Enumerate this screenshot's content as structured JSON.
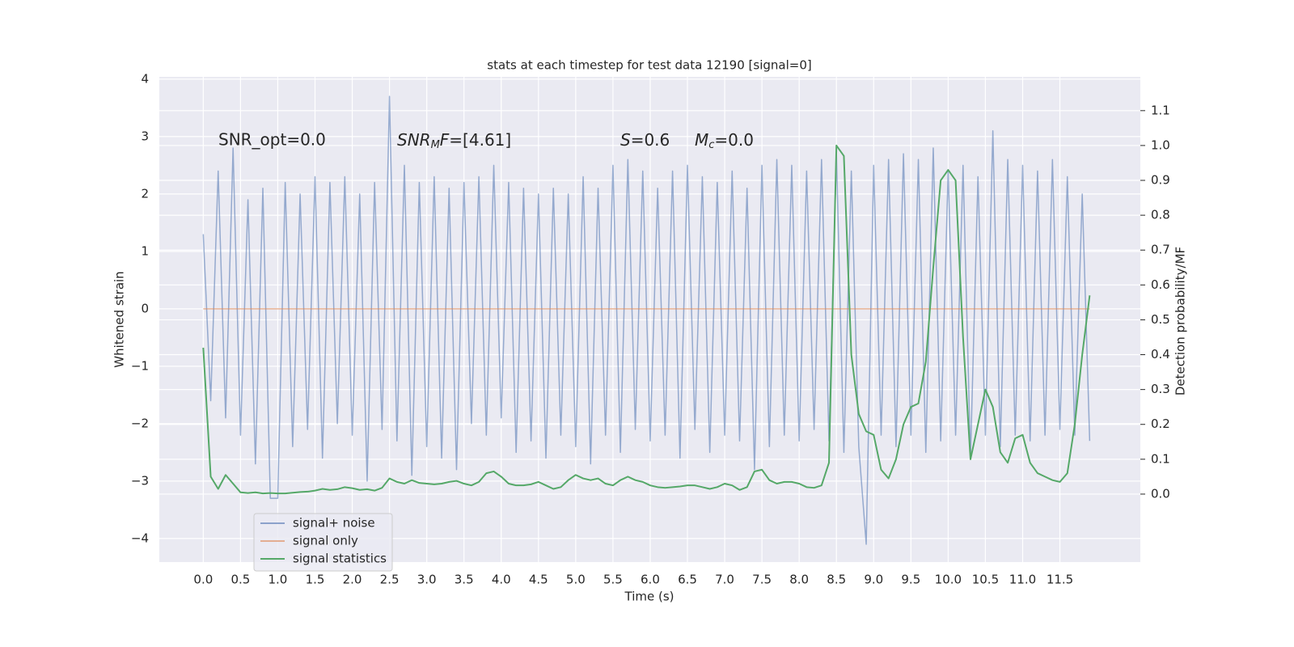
{
  "chart_data": {
    "type": "line",
    "title": "stats at each timestep for test data 12190 [signal=0]",
    "xlabel": "Time (s)",
    "ylabel": "Whitened strain",
    "y2label": "Detection probability/MF",
    "annotations": {
      "snr_opt": "SNR_opt=0.0",
      "snr_mf": [
        "SNR",
        "M",
        "F",
        "=[4.61]"
      ],
      "s": [
        "S",
        "=0.6"
      ],
      "mc": [
        "M",
        "c",
        "=0.0"
      ]
    },
    "x": [
      0,
      0.1,
      0.2,
      0.3,
      0.4,
      0.5,
      0.6,
      0.7,
      0.8,
      0.9,
      1.0,
      1.1,
      1.2,
      1.3,
      1.4,
      1.5,
      1.6,
      1.7,
      1.8,
      1.9,
      2.0,
      2.1,
      2.2,
      2.3,
      2.4,
      2.5,
      2.6,
      2.7,
      2.8,
      2.9,
      3.0,
      3.1,
      3.2,
      3.3,
      3.4,
      3.5,
      3.6,
      3.7,
      3.8,
      3.9,
      4.0,
      4.1,
      4.2,
      4.3,
      4.4,
      4.5,
      4.6,
      4.7,
      4.8,
      4.9,
      5.0,
      5.1,
      5.2,
      5.3,
      5.4,
      5.5,
      5.6,
      5.7,
      5.8,
      5.9,
      6.0,
      6.1,
      6.2,
      6.3,
      6.4,
      6.5,
      6.6,
      6.7,
      6.8,
      6.9,
      7.0,
      7.1,
      7.2,
      7.3,
      7.4,
      7.5,
      7.6,
      7.7,
      7.8,
      7.9,
      8.0,
      8.1,
      8.2,
      8.3,
      8.4,
      8.5,
      8.6,
      8.7,
      8.8,
      8.9,
      9.0,
      9.1,
      9.2,
      9.3,
      9.4,
      9.5,
      9.6,
      9.7,
      9.8,
      9.9,
      10.0,
      10.1,
      10.2,
      10.3,
      10.4,
      10.5,
      10.6,
      10.7,
      10.8,
      10.9,
      11.0,
      11.1,
      11.2,
      11.3,
      11.4,
      11.5,
      11.6,
      11.7,
      11.8,
      11.9
    ],
    "series": [
      {
        "name": "signal+ noise",
        "color": "#4c72b0",
        "values": [
          1.3,
          -1.6,
          2.4,
          -1.9,
          2.8,
          -2.2,
          1.9,
          -2.7,
          2.1,
          -3.3,
          -3.3,
          2.2,
          -2.4,
          2.0,
          -2.1,
          2.3,
          -2.6,
          2.2,
          -2.0,
          2.3,
          -2.2,
          2.0,
          -3.0,
          2.2,
          -2.1,
          3.7,
          -2.3,
          2.5,
          -2.9,
          2.2,
          -2.4,
          2.3,
          -2.6,
          2.1,
          -2.8,
          2.2,
          -2.0,
          2.3,
          -2.2,
          2.5,
          -1.9,
          2.2,
          -2.5,
          2.1,
          -2.3,
          2.0,
          -2.6,
          2.1,
          -2.2,
          2.0,
          -2.4,
          2.3,
          -2.7,
          2.1,
          -2.2,
          2.5,
          -2.5,
          2.6,
          -2.1,
          2.4,
          -2.3,
          2.1,
          -2.2,
          2.4,
          -2.6,
          2.5,
          -2.1,
          2.3,
          -2.5,
          2.2,
          -2.2,
          2.4,
          -2.3,
          2.1,
          -2.8,
          2.5,
          -2.4,
          2.6,
          -2.2,
          2.5,
          -2.3,
          2.4,
          -2.1,
          2.6,
          -2.3,
          2.7,
          -2.5,
          2.4,
          -2.4,
          -4.1,
          2.5,
          -2.2,
          2.6,
          -2.4,
          2.7,
          -2.2,
          2.6,
          -2.5,
          2.8,
          -2.3,
          2.4,
          -2.2,
          2.5,
          -2.6,
          2.3,
          -2.2,
          3.1,
          -2.4,
          2.6,
          -2.2,
          2.5,
          -2.3,
          2.4,
          -2.2,
          2.6,
          -2.1,
          2.3,
          -2.2,
          2.0,
          -2.3
        ]
      },
      {
        "name": "signal only",
        "color": "#dd8452",
        "values": [
          0,
          0,
          0,
          0,
          0,
          0,
          0,
          0,
          0,
          0,
          0,
          0,
          0,
          0,
          0,
          0,
          0,
          0,
          0,
          0,
          0,
          0,
          0,
          0,
          0,
          0,
          0,
          0,
          0,
          0,
          0,
          0,
          0,
          0,
          0,
          0,
          0,
          0,
          0,
          0,
          0,
          0,
          0,
          0,
          0,
          0,
          0,
          0,
          0,
          0,
          0,
          0,
          0,
          0,
          0,
          0,
          0,
          0,
          0,
          0,
          0,
          0,
          0,
          0,
          0,
          0,
          0,
          0,
          0,
          0,
          0,
          0,
          0,
          0,
          0,
          0,
          0,
          0,
          0,
          0,
          0,
          0,
          0,
          0,
          0,
          0,
          0,
          0,
          0,
          0,
          0,
          0,
          0,
          0,
          0,
          0,
          0,
          0,
          0,
          0,
          0,
          0,
          0,
          0,
          0,
          0,
          0,
          0,
          0,
          0,
          0,
          0,
          0,
          0,
          0,
          0,
          0,
          0,
          0,
          0
        ]
      },
      {
        "name": "signal statistics",
        "color": "#55a868",
        "axis": "y2",
        "values": [
          0.42,
          0.05,
          0.015,
          0.055,
          0.03,
          0.005,
          0.003,
          0.005,
          0.002,
          0.003,
          0.002,
          0.002,
          0.004,
          0.006,
          0.007,
          0.01,
          0.015,
          0.012,
          0.014,
          0.02,
          0.017,
          0.012,
          0.014,
          0.01,
          0.018,
          0.045,
          0.035,
          0.03,
          0.04,
          0.032,
          0.03,
          0.028,
          0.03,
          0.035,
          0.038,
          0.03,
          0.025,
          0.035,
          0.06,
          0.065,
          0.05,
          0.03,
          0.025,
          0.025,
          0.028,
          0.035,
          0.025,
          0.015,
          0.02,
          0.04,
          0.055,
          0.045,
          0.04,
          0.045,
          0.03,
          0.025,
          0.04,
          0.05,
          0.04,
          0.035,
          0.025,
          0.02,
          0.018,
          0.02,
          0.022,
          0.025,
          0.025,
          0.02,
          0.015,
          0.02,
          0.03,
          0.025,
          0.012,
          0.02,
          0.065,
          0.07,
          0.04,
          0.03,
          0.035,
          0.035,
          0.03,
          0.02,
          0.018,
          0.025,
          0.09,
          1.0,
          0.97,
          0.4,
          0.23,
          0.18,
          0.17,
          0.07,
          0.045,
          0.1,
          0.2,
          0.25,
          0.26,
          0.38,
          0.65,
          0.9,
          0.93,
          0.9,
          0.45,
          0.1,
          0.2,
          0.3,
          0.25,
          0.12,
          0.09,
          0.16,
          0.17,
          0.09,
          0.06,
          0.05,
          0.04,
          0.035,
          0.06,
          0.2,
          0.4,
          0.57
        ]
      }
    ],
    "xlim": [
      -0.59,
      12.58
    ],
    "ylim": [
      -4.41,
      4.04
    ],
    "y2lim": [
      -0.195,
      1.197
    ],
    "xticks": [
      {
        "value": 0,
        "label": "0.0"
      },
      {
        "value": 0.5,
        "label": "0.5"
      },
      {
        "value": 1,
        "label": "1.0"
      },
      {
        "value": 1.5,
        "label": "1.5"
      },
      {
        "value": 2,
        "label": "2.0"
      },
      {
        "value": 2.5,
        "label": "2.5"
      },
      {
        "value": 3,
        "label": "3.0"
      },
      {
        "value": 3.5,
        "label": "3.5"
      },
      {
        "value": 4,
        "label": "4.0"
      },
      {
        "value": 4.5,
        "label": "4.5"
      },
      {
        "value": 5,
        "label": "5.0"
      },
      {
        "value": 5.5,
        "label": "5.5"
      },
      {
        "value": 6,
        "label": "6.0"
      },
      {
        "value": 6.5,
        "label": "6.5"
      },
      {
        "value": 7,
        "label": "7.0"
      },
      {
        "value": 7.5,
        "label": "7.5"
      },
      {
        "value": 8,
        "label": "8.0"
      },
      {
        "value": 8.5,
        "label": "8.5"
      },
      {
        "value": 9,
        "label": "9.0"
      },
      {
        "value": 9.5,
        "label": "9.5"
      },
      {
        "value": 10,
        "label": "10.0"
      },
      {
        "value": 10.5,
        "label": "10.5"
      },
      {
        "value": 11,
        "label": "11.0"
      },
      {
        "value": 11.5,
        "label": "11.5"
      }
    ],
    "yticks": [
      {
        "value": -4,
        "label": "−4"
      },
      {
        "value": -3,
        "label": "−3"
      },
      {
        "value": -2,
        "label": "−2"
      },
      {
        "value": -1,
        "label": "−1"
      },
      0,
      1,
      2,
      3,
      4
    ],
    "y2ticks": [
      {
        "value": 0,
        "label": "0.0"
      },
      {
        "value": 0.1,
        "label": "0.1"
      },
      {
        "value": 0.2,
        "label": "0.2"
      },
      {
        "value": 0.3,
        "label": "0.3"
      },
      {
        "value": 0.4,
        "label": "0.4"
      },
      {
        "value": 0.5,
        "label": "0.5"
      },
      {
        "value": 0.6,
        "label": "0.6"
      },
      {
        "value": 0.7,
        "label": "0.7"
      },
      {
        "value": 0.8,
        "label": "0.8"
      },
      {
        "value": 0.9,
        "label": "0.9"
      },
      {
        "value": 1,
        "label": "1.0"
      },
      {
        "value": 1.1,
        "label": "1.1"
      }
    ],
    "grid": true,
    "legend": "lower left"
  }
}
